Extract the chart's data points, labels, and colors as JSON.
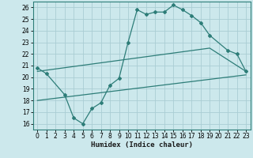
{
  "xlabel": "Humidex (Indice chaleur)",
  "background_color": "#cce8ec",
  "line_color": "#2d7d78",
  "grid_color": "#aacdd4",
  "xlim": [
    -0.5,
    23.5
  ],
  "ylim": [
    15.5,
    26.5
  ],
  "xticks": [
    0,
    1,
    2,
    3,
    4,
    5,
    6,
    7,
    8,
    9,
    10,
    11,
    12,
    13,
    14,
    15,
    16,
    17,
    18,
    19,
    20,
    21,
    22,
    23
  ],
  "yticks": [
    16,
    17,
    18,
    19,
    20,
    21,
    22,
    23,
    24,
    25,
    26
  ],
  "series_main": {
    "x": [
      0,
      1,
      3,
      4,
      5,
      6,
      7,
      8,
      9,
      10,
      11,
      12,
      13,
      14,
      15,
      16,
      17,
      18,
      19,
      21,
      22,
      23
    ],
    "y": [
      20.8,
      20.3,
      18.5,
      16.5,
      16.0,
      17.3,
      17.8,
      19.3,
      19.9,
      23.0,
      25.8,
      25.4,
      25.6,
      25.6,
      26.2,
      25.8,
      25.3,
      24.7,
      23.6,
      22.3,
      22.0,
      20.5
    ]
  },
  "series_lo": {
    "x": [
      0,
      23
    ],
    "y": [
      18.0,
      20.2
    ]
  },
  "series_hi": {
    "x": [
      0,
      19,
      23
    ],
    "y": [
      20.5,
      22.5,
      20.5
    ]
  }
}
